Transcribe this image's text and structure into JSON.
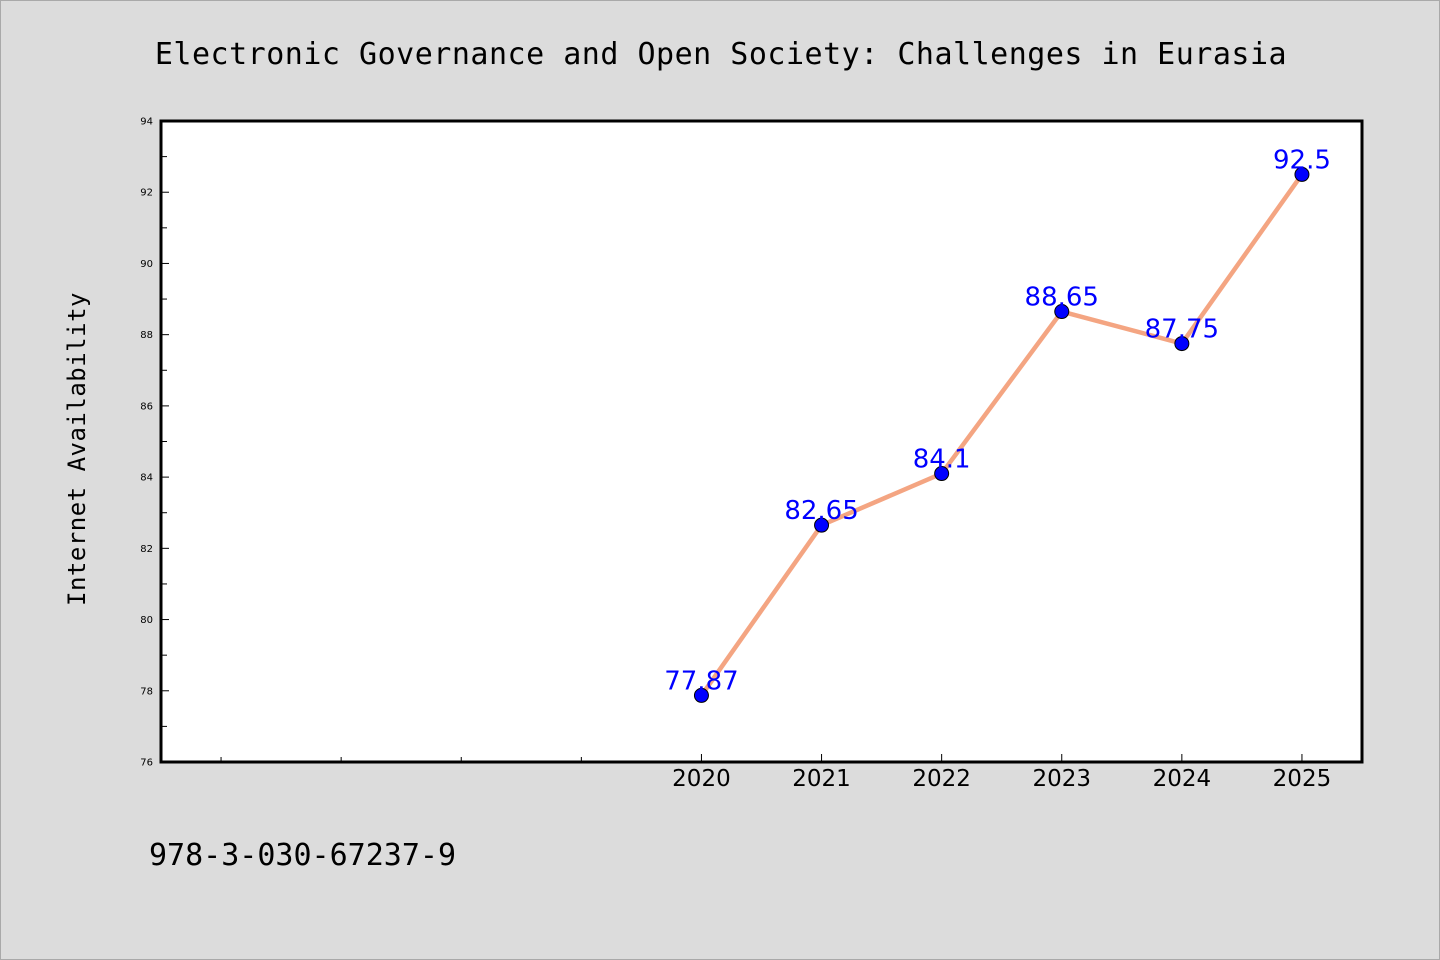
{
  "chart_data": {
    "type": "line",
    "title": "Electronic Governance and Open Society: Challenges in Eurasia",
    "xlabel": "",
    "ylabel": "Internet Availability",
    "x": [
      2020,
      2021,
      2022,
      2023,
      2024,
      2025
    ],
    "x_tick_labels": [
      "2020",
      "2021",
      "2022",
      "2023",
      "2024",
      "2025"
    ],
    "xlim": [
      2015.5,
      2025.5
    ],
    "y": [
      77.87,
      82.65,
      84.1,
      88.65,
      87.75,
      92.5
    ],
    "data_labels": [
      "77.87",
      "82.65",
      "84.1",
      "88.65",
      "87.75",
      "92.5"
    ],
    "ylim": [
      76,
      94
    ],
    "y_ticks": [
      76,
      78,
      80,
      82,
      84,
      86,
      88,
      90,
      92,
      94
    ],
    "y_tick_labels": [
      "76",
      "78",
      "80",
      "82",
      "84",
      "86",
      "88",
      "90",
      "92",
      "94"
    ],
    "grid": false,
    "colors": {
      "line": "#f4a582",
      "marker": "#0000ff",
      "label": "#0000ff",
      "figure_background": "#dcdcdc",
      "plot_background": "#ffffff"
    }
  },
  "footer": {
    "isbn": "978-3-030-67237-9"
  }
}
